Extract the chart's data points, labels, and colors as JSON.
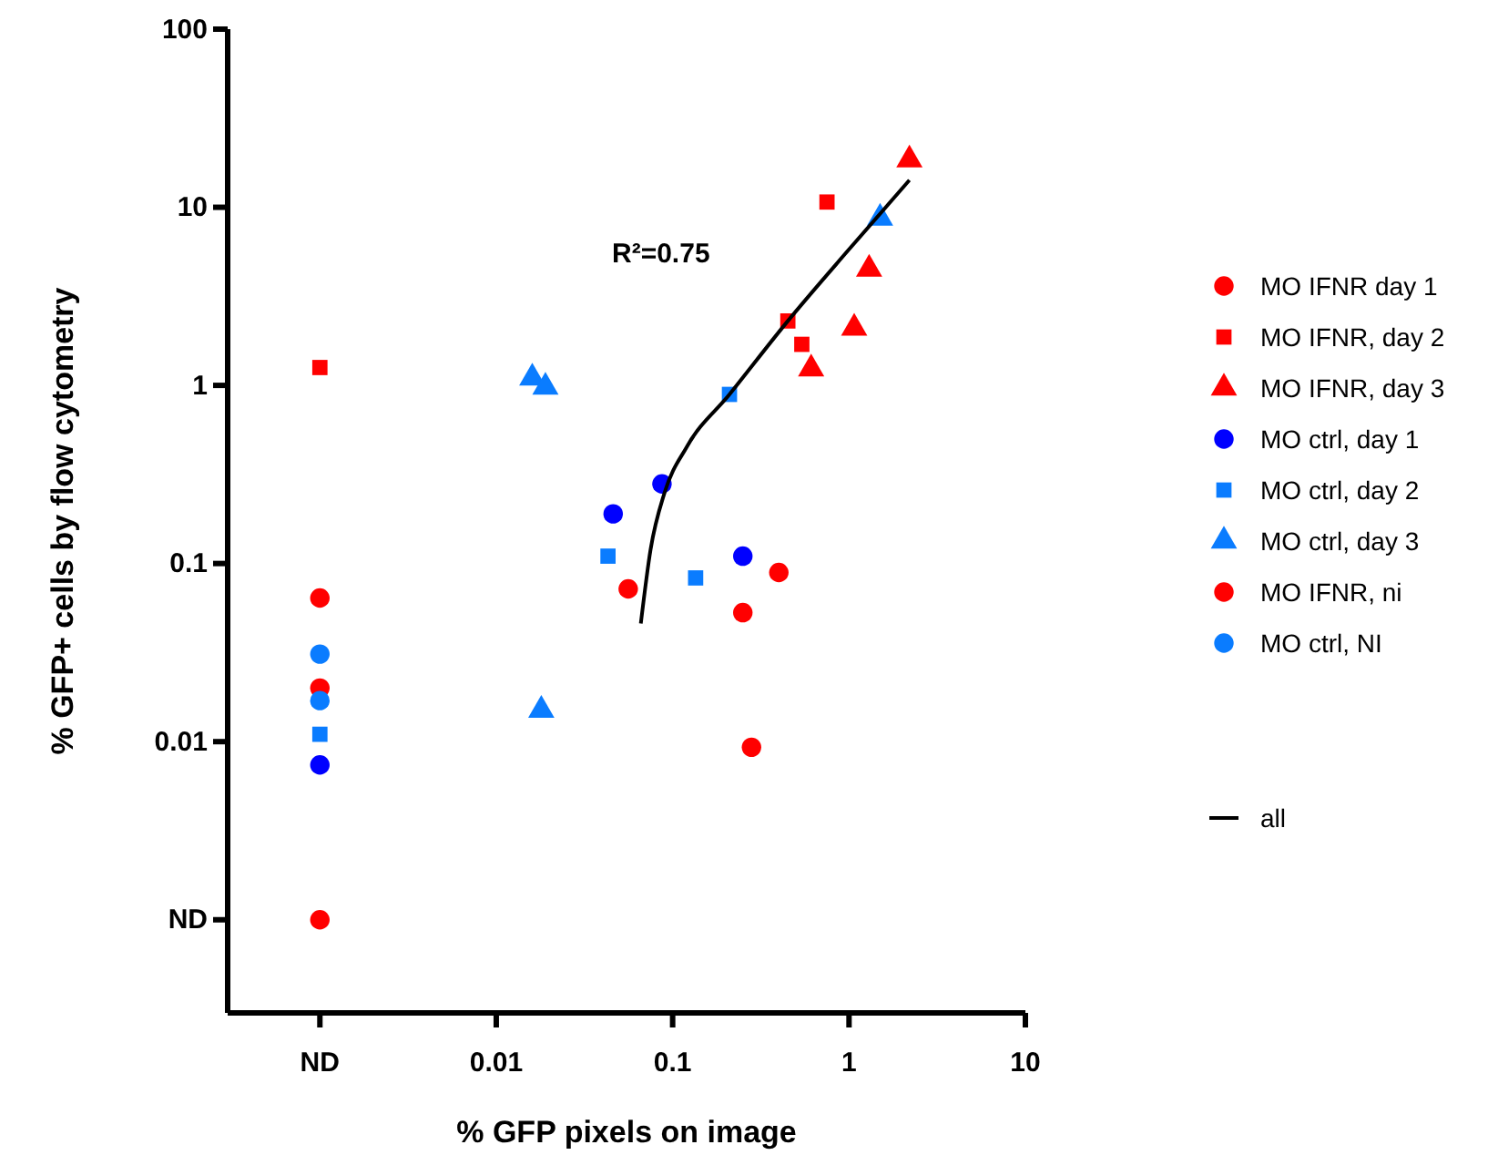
{
  "chart_data": {
    "type": "scatter",
    "xlabel": "% GFP pixels on image",
    "ylabel": "% GFP+ cells by flow cytometry",
    "log": "xy",
    "grid": false,
    "legend": "right",
    "xlim": [
      0.0003,
      10
    ],
    "xticks": [
      {
        "value": 0.001,
        "label": "ND"
      },
      0.01,
      0.1,
      1,
      10
    ],
    "ylim": [
      0.0003,
      100
    ],
    "yticks": [
      {
        "value": 0.001,
        "label": "ND"
      },
      0.01,
      0.1,
      1,
      10,
      100
    ],
    "annotations": [
      "R²=0.75"
    ],
    "series": [
      {
        "name": "MO IFNR day 1",
        "color": "#ff0000",
        "marker": "circle",
        "x": [
          0.056,
          0.25,
          0.4,
          0.28
        ],
        "values": [
          0.072,
          0.053,
          0.089,
          0.0093
        ]
      },
      {
        "name": "MO IFNR, day 2",
        "color": "#ff0000",
        "marker": "square",
        "x": [
          0.001,
          0.75,
          0.45,
          0.54
        ],
        "values": [
          1.26,
          10.7,
          2.3,
          1.7
        ]
      },
      {
        "name": "MO IFNR, day 3",
        "color": "#ff0000",
        "marker": "triangle",
        "x": [
          2.2,
          1.3,
          1.07,
          0.61
        ],
        "values": [
          18.5,
          4.5,
          2.1,
          1.24
        ]
      },
      {
        "name": "MO ctrl, day 1",
        "color": "#0000ff",
        "marker": "circle",
        "x": [
          0.087,
          0.046,
          0.25,
          0.001
        ],
        "values": [
          0.28,
          0.19,
          0.11,
          0.0074
        ]
      },
      {
        "name": "MO ctrl, day 2",
        "color": "#0a7cff",
        "marker": "square",
        "x": [
          0.21,
          0.043,
          0.135,
          0.001
        ],
        "values": [
          0.89,
          0.11,
          0.083,
          0.011
        ]
      },
      {
        "name": "MO ctrl, day 3",
        "color": "#0a7cff",
        "marker": "triangle",
        "x": [
          0.016,
          0.019,
          1.5,
          0.018
        ],
        "values": [
          1.1,
          0.98,
          8.7,
          0.015
        ]
      },
      {
        "name": "MO IFNR, ni",
        "color": "#ff0000",
        "marker": "circle",
        "x": [
          0.001,
          0.001,
          0.001
        ],
        "values": [
          0.064,
          0.02,
          0.001
        ]
      },
      {
        "name": "MO ctrl, NI",
        "color": "#0a7cff",
        "marker": "circle",
        "x": [
          0.001,
          0.001
        ],
        "values": [
          0.031,
          0.017
        ]
      },
      {
        "name": "all",
        "type": "line",
        "color": "#000000",
        "marker": "none",
        "line_style": "solid",
        "x": [
          0.066,
          0.075,
          0.09,
          0.12,
          0.21,
          0.45,
          1.0,
          2.2
        ],
        "values": [
          0.046,
          0.12,
          0.25,
          0.45,
          0.89,
          2.3,
          5.8,
          14.2
        ]
      }
    ]
  }
}
